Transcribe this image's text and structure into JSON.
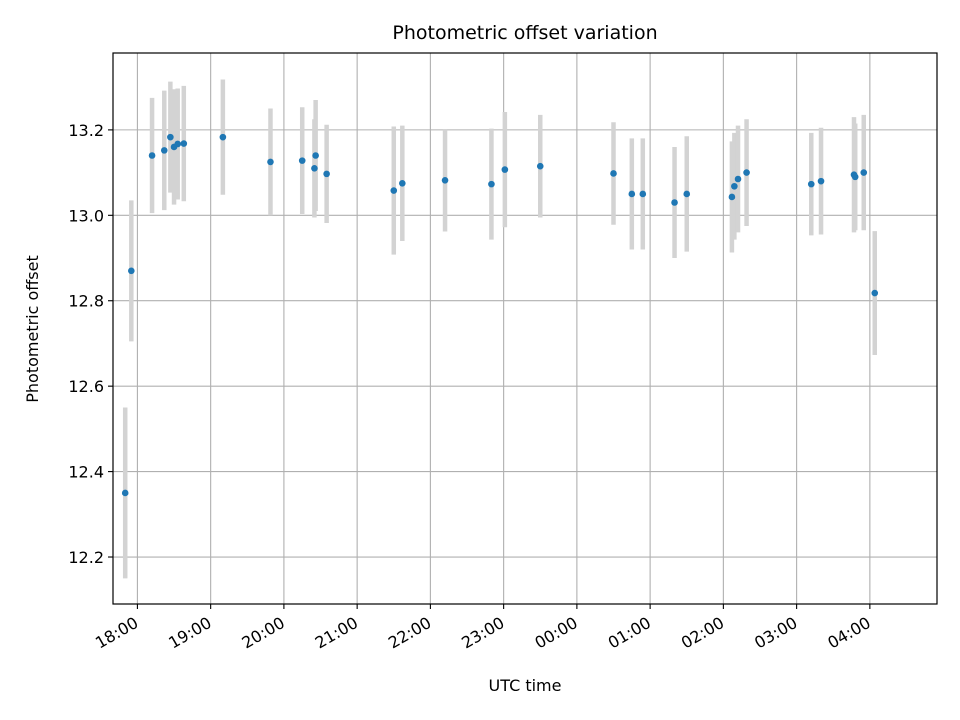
{
  "chart_data": {
    "type": "scatter",
    "title": "Photometric offset variation",
    "xlabel": "UTC time",
    "ylabel": "Photometric offset",
    "grid": true,
    "colors": {
      "points": "#1f77b4",
      "errorbars": "#d3d3d3",
      "grid": "#b0b0b0"
    },
    "x_ticks": [
      "18:00",
      "19:00",
      "20:00",
      "21:00",
      "22:00",
      "23:00",
      "00:00",
      "01:00",
      "02:00",
      "03:00",
      "04:00"
    ],
    "y_ticks": [
      "12.2",
      "12.4",
      "12.6",
      "12.8",
      "13.0",
      "13.2"
    ],
    "ylim": [
      12.09,
      13.38
    ],
    "xlim": [
      "17:40",
      "04:55"
    ],
    "series": [
      {
        "points": [
          {
            "x": "17:50",
            "y": 12.35,
            "err": 0.2
          },
          {
            "x": "17:55",
            "y": 12.87,
            "err": 0.165
          },
          {
            "x": "18:12",
            "y": 13.14,
            "err": 0.135
          },
          {
            "x": "18:22",
            "y": 13.152,
            "err": 0.14
          },
          {
            "x": "18:27",
            "y": 13.183,
            "err": 0.13
          },
          {
            "x": "18:30",
            "y": 13.16,
            "err": 0.135
          },
          {
            "x": "18:33",
            "y": 13.167,
            "err": 0.13
          },
          {
            "x": "18:38",
            "y": 13.168,
            "err": 0.135
          },
          {
            "x": "19:10",
            "y": 13.183,
            "err": 0.135
          },
          {
            "x": "19:49",
            "y": 13.125,
            "err": 0.125
          },
          {
            "x": "20:15",
            "y": 13.128,
            "err": 0.125
          },
          {
            "x": "20:25",
            "y": 13.11,
            "err": 0.115
          },
          {
            "x": "20:26",
            "y": 13.14,
            "err": 0.13
          },
          {
            "x": "20:35",
            "y": 13.097,
            "err": 0.115
          },
          {
            "x": "21:30",
            "y": 13.058,
            "err": 0.15
          },
          {
            "x": "21:37",
            "y": 13.075,
            "err": 0.135
          },
          {
            "x": "22:12",
            "y": 13.082,
            "err": 0.12
          },
          {
            "x": "22:50",
            "y": 13.073,
            "err": 0.13
          },
          {
            "x": "23:01",
            "y": 13.107,
            "err": 0.135
          },
          {
            "x": "23:30",
            "y": 13.115,
            "err": 0.12
          },
          {
            "x": "00:30",
            "y": 13.098,
            "err": 0.12
          },
          {
            "x": "00:45",
            "y": 13.05,
            "err": 0.13
          },
          {
            "x": "00:54",
            "y": 13.05,
            "err": 0.13
          },
          {
            "x": "01:20",
            "y": 13.03,
            "err": 0.13
          },
          {
            "x": "01:30",
            "y": 13.05,
            "err": 0.135
          },
          {
            "x": "02:07",
            "y": 13.043,
            "err": 0.13
          },
          {
            "x": "02:09",
            "y": 13.068,
            "err": 0.125
          },
          {
            "x": "02:12",
            "y": 13.085,
            "err": 0.125
          },
          {
            "x": "02:19",
            "y": 13.1,
            "err": 0.125
          },
          {
            "x": "03:12",
            "y": 13.073,
            "err": 0.12
          },
          {
            "x": "03:20",
            "y": 13.08,
            "err": 0.125
          },
          {
            "x": "03:47",
            "y": 13.095,
            "err": 0.135
          },
          {
            "x": "03:48",
            "y": 13.09,
            "err": 0.125
          },
          {
            "x": "03:55",
            "y": 13.1,
            "err": 0.135
          },
          {
            "x": "04:04",
            "y": 12.818,
            "err": 0.145
          }
        ]
      }
    ]
  }
}
